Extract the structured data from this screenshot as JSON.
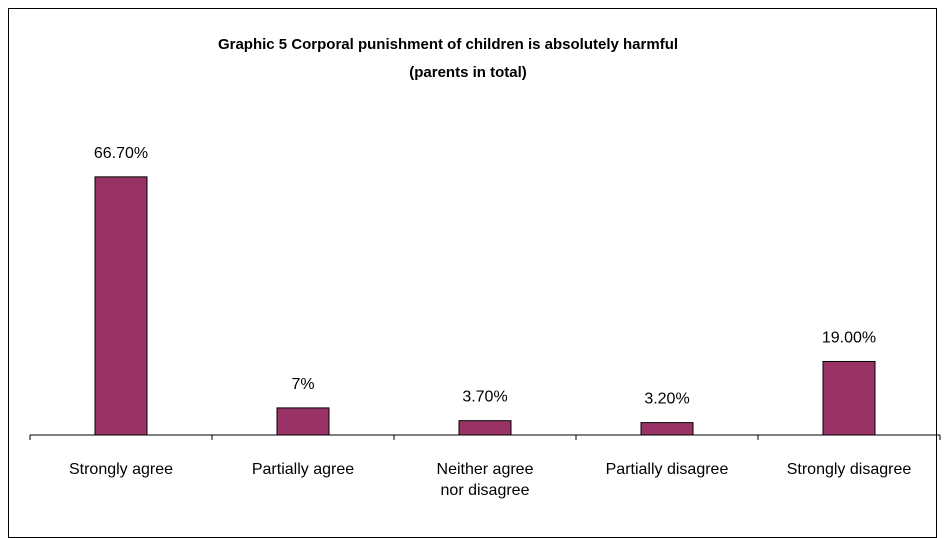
{
  "chart_data": {
    "type": "bar",
    "title_lines": [
      "Graphic 5 Corporal punishment of children is absolutely harmful",
      "(parents in total)"
    ],
    "categories": [
      [
        "Strongly agree"
      ],
      [
        "Partially agree"
      ],
      [
        "Neither agree",
        "nor disagree"
      ],
      [
        "Partially disagree"
      ],
      [
        "Strongly disagree"
      ]
    ],
    "values": [
      66.7,
      7,
      3.7,
      3.2,
      19.0
    ],
    "data_labels": [
      "66.70%",
      "7%",
      "3.70%",
      "3.20%",
      "19.00%"
    ],
    "bar_color": "#993366",
    "ylim": [
      0,
      100
    ],
    "grid": false,
    "legend": "none"
  }
}
